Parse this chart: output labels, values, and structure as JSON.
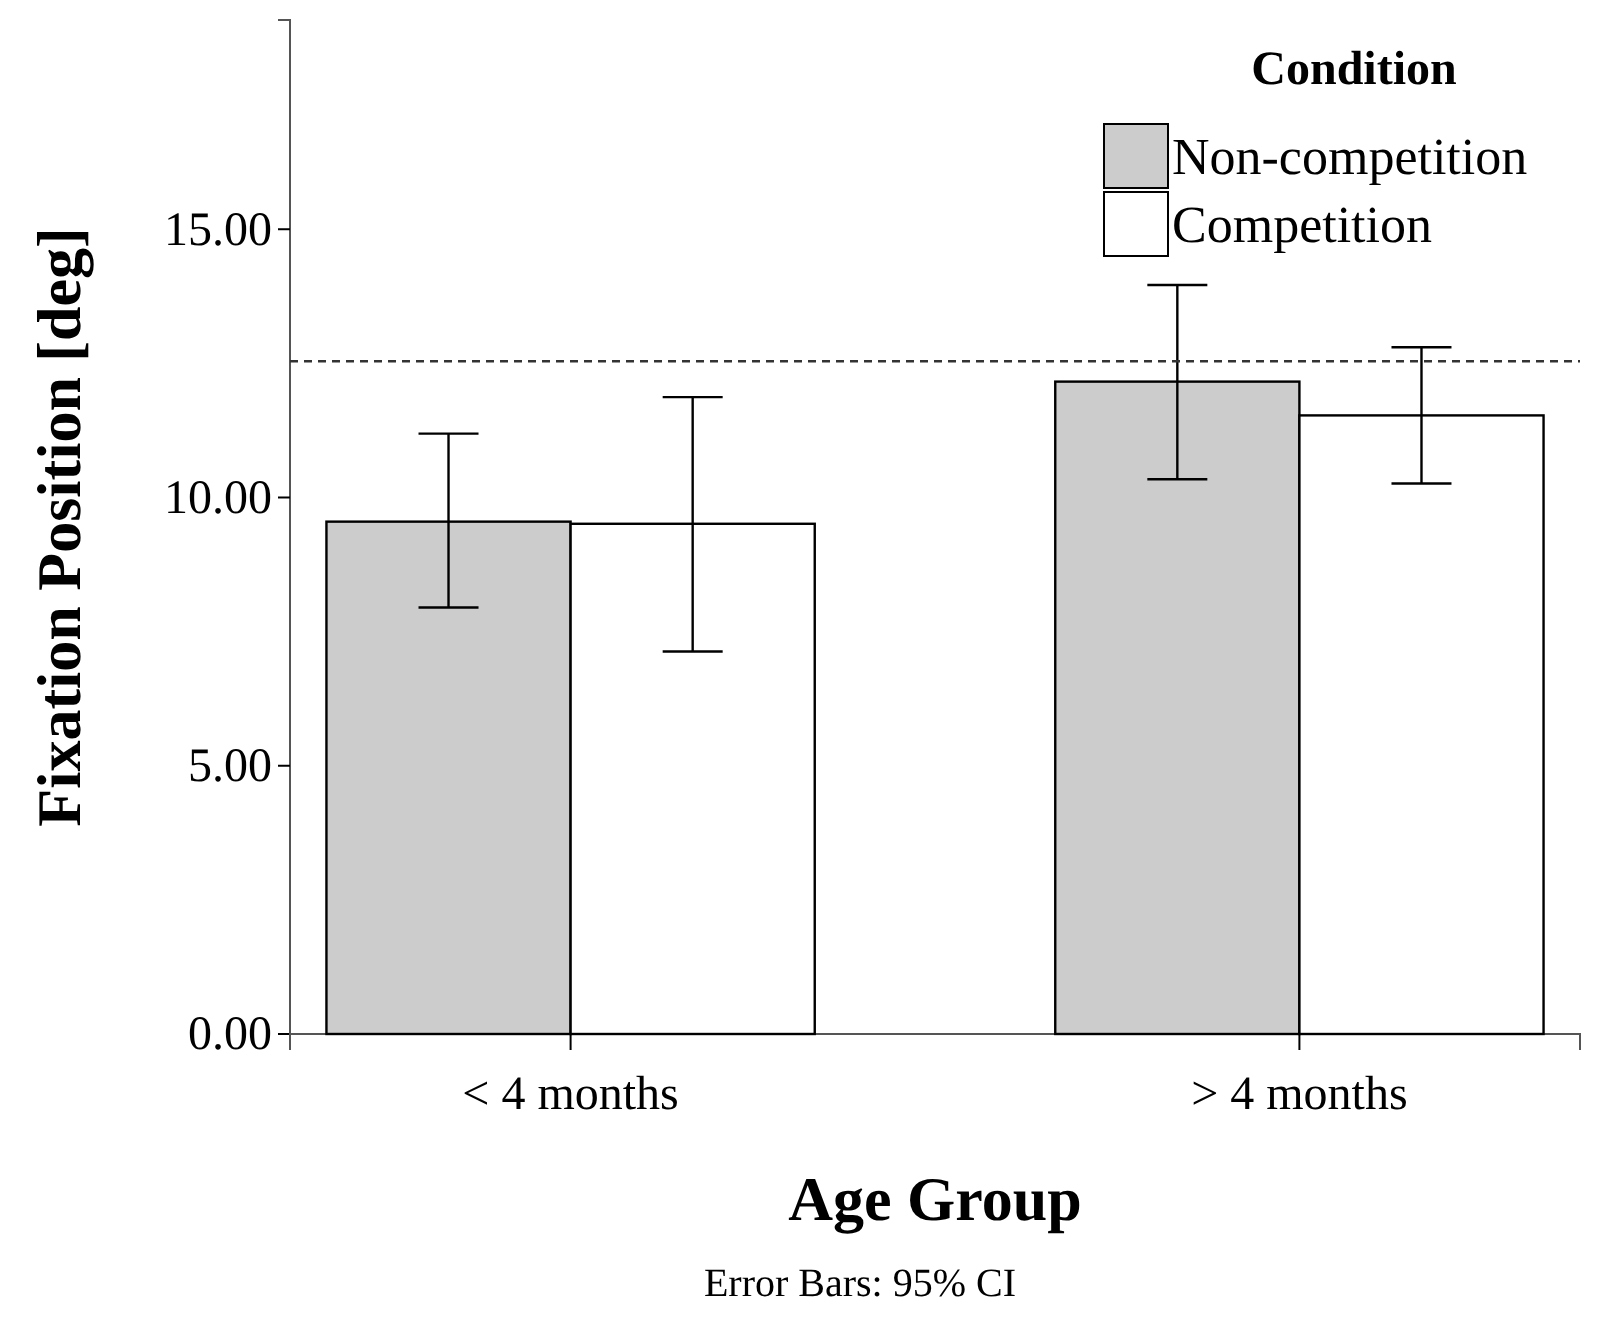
{
  "chart_data": {
    "type": "bar",
    "xlabel": "Age Group",
    "ylabel": "Fixation Position [deg]",
    "legend_title": "Condition",
    "categories": [
      "< 4 months",
      "> 4 months"
    ],
    "series": [
      {
        "name": "Non-competition",
        "color": "#cccccc",
        "values": [
          9.55,
          12.16
        ],
        "errors": [
          [
            7.95,
            11.19
          ],
          [
            10.34,
            13.96
          ]
        ]
      },
      {
        "name": "Competition",
        "color": "#ffffff",
        "values": [
          9.51,
          11.53
        ],
        "errors": [
          [
            7.13,
            11.87
          ],
          [
            10.26,
            12.8
          ]
        ]
      }
    ],
    "ylim": [
      0,
      18.9
    ],
    "yticks": [
      {
        "value": 0,
        "label": "0.00"
      },
      {
        "value": 5,
        "label": "5.00"
      },
      {
        "value": 10,
        "label": "10.00"
      },
      {
        "value": 15,
        "label": "15.00"
      }
    ],
    "ref_lines": [
      {
        "axis": "y",
        "value": 12.54,
        "line_style": "dashed"
      }
    ],
    "grid": false,
    "legend": "top right",
    "annotations": [
      "Error Bars: 95% CI"
    ]
  }
}
